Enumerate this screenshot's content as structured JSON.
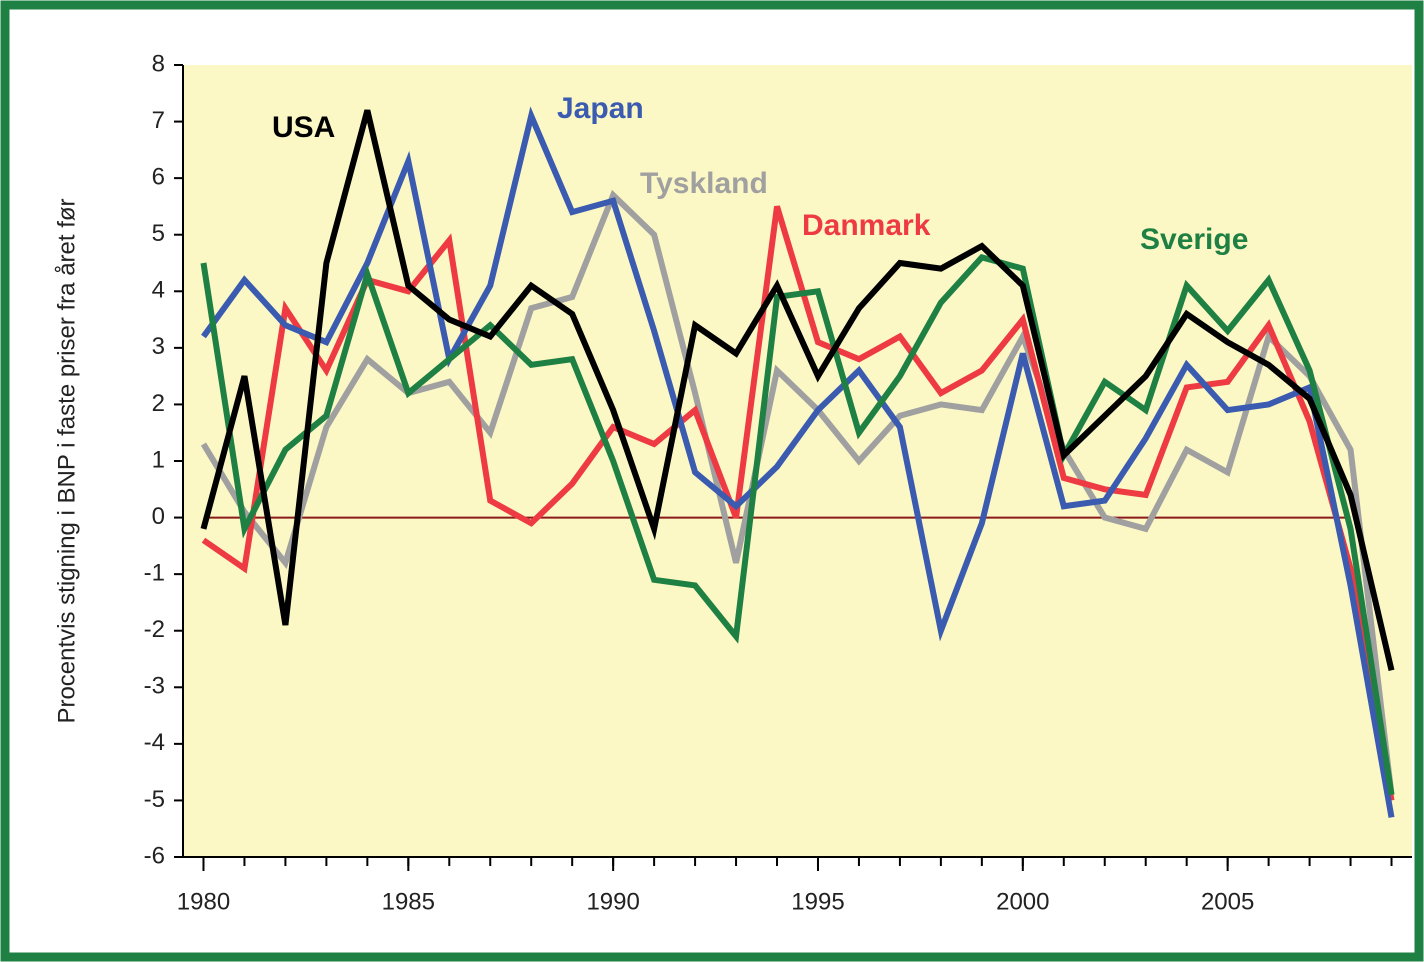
{
  "chart_data": {
    "type": "line",
    "ylabel": "Procentvis stigning i BNP i faste priser fra året før",
    "x": [
      1980,
      1981,
      1982,
      1983,
      1984,
      1985,
      1986,
      1987,
      1988,
      1989,
      1990,
      1991,
      1992,
      1993,
      1994,
      1995,
      1996,
      1997,
      1998,
      1999,
      2000,
      2001,
      2002,
      2003,
      2004,
      2005,
      2006,
      2007,
      2008,
      2009
    ],
    "xlim": [
      1979.5,
      2009.5
    ],
    "xticks": [
      1980,
      1985,
      1990,
      1995,
      2000,
      2005
    ],
    "ylim": [
      -6,
      8
    ],
    "yticks": [
      -6,
      -5,
      -4,
      -3,
      -2,
      -1,
      0,
      1,
      2,
      3,
      4,
      5,
      6,
      7,
      8
    ],
    "reference_line": {
      "value": 0,
      "color": "#8b1a1a"
    },
    "series": [
      {
        "name": "Tyskland",
        "color": "#a0a0a0",
        "values": [
          1.3,
          0.1,
          -0.8,
          1.6,
          2.8,
          2.2,
          2.4,
          1.5,
          3.7,
          3.9,
          5.7,
          5.0,
          2.2,
          -0.8,
          2.6,
          1.9,
          1.0,
          1.8,
          2.0,
          1.9,
          3.2,
          1.2,
          0.0,
          -0.2,
          1.2,
          0.8,
          3.2,
          2.5,
          1.2,
          -4.9
        ]
      },
      {
        "name": "Danmark",
        "color": "#ee3a43",
        "values": [
          -0.4,
          -0.9,
          3.7,
          2.6,
          4.2,
          4.0,
          4.9,
          0.3,
          -0.1,
          0.6,
          1.6,
          1.3,
          1.9,
          0.0,
          5.5,
          3.1,
          2.8,
          3.2,
          2.2,
          2.6,
          3.5,
          0.7,
          0.5,
          0.4,
          2.3,
          2.4,
          3.4,
          1.7,
          -0.9,
          -5.0
        ]
      },
      {
        "name": "Japan",
        "color": "#3a5bb0",
        "values": [
          3.2,
          4.2,
          3.4,
          3.1,
          4.5,
          6.3,
          2.8,
          4.1,
          7.1,
          5.4,
          5.6,
          3.3,
          0.8,
          0.2,
          0.9,
          1.9,
          2.6,
          1.6,
          -2.0,
          -0.1,
          2.9,
          0.2,
          0.3,
          1.4,
          2.7,
          1.9,
          2.0,
          2.3,
          -1.2,
          -5.3
        ]
      },
      {
        "name": "Sverige",
        "color": "#1f8043",
        "values": [
          4.5,
          -0.2,
          1.2,
          1.8,
          4.3,
          2.2,
          2.8,
          3.4,
          2.7,
          2.8,
          1.0,
          -1.1,
          -1.2,
          -2.1,
          3.9,
          4.0,
          1.5,
          2.5,
          3.8,
          4.6,
          4.4,
          1.1,
          2.4,
          1.9,
          4.1,
          3.3,
          4.2,
          2.6,
          -0.2,
          -4.9
        ]
      },
      {
        "name": "USA",
        "color": "#000000",
        "values": [
          -0.2,
          2.5,
          -1.9,
          4.5,
          7.2,
          4.1,
          3.5,
          3.2,
          4.1,
          3.6,
          1.9,
          -0.2,
          3.4,
          2.9,
          4.1,
          2.5,
          3.7,
          4.5,
          4.4,
          4.8,
          4.1,
          1.1,
          1.8,
          2.5,
          3.6,
          3.1,
          2.7,
          2.1,
          0.4,
          -2.7
        ]
      }
    ]
  }
}
